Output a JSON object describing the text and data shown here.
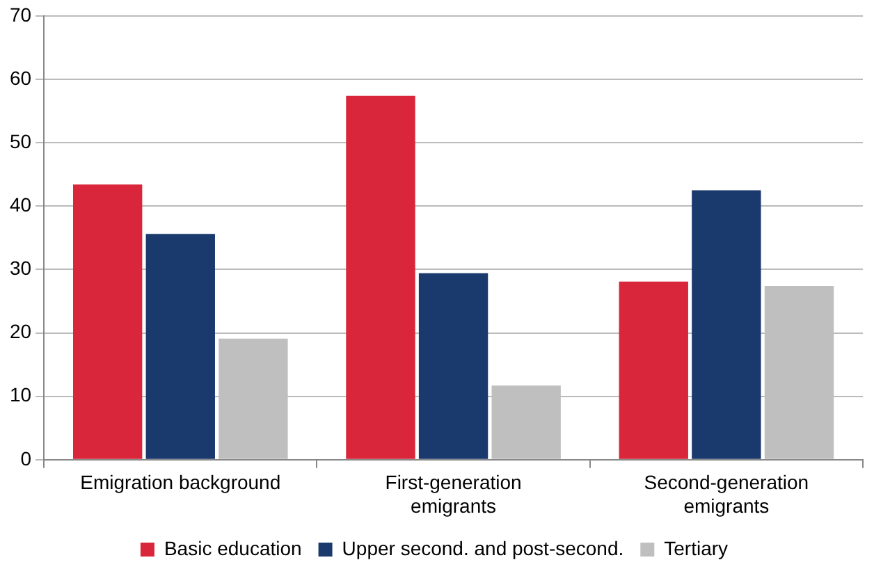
{
  "chart_data": {
    "type": "bar",
    "categories": [
      "Emigration background",
      "First-generation emigrants",
      "Second-generation emigrants"
    ],
    "series": [
      {
        "name": "Basic education",
        "color": "#d9263a",
        "values": [
          43.4,
          57.4,
          28.1
        ]
      },
      {
        "name": "Upper second. and post-second.",
        "color": "#1a3a6e",
        "values": [
          35.6,
          29.4,
          42.5
        ]
      },
      {
        "name": "Tertiary",
        "color": "#bfbfbf",
        "values": [
          19.1,
          11.7,
          27.4
        ]
      }
    ],
    "ylim": [
      0,
      70
    ],
    "yticks": [
      0,
      10,
      20,
      30,
      40,
      50,
      60,
      70
    ],
    "grid": "y",
    "legend": "bottom"
  }
}
